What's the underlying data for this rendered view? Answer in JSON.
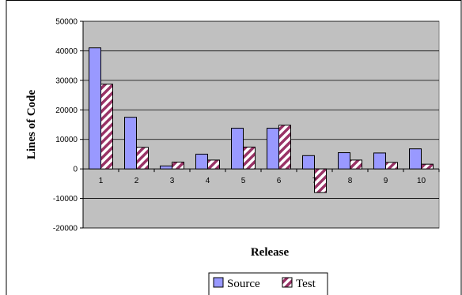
{
  "colors": {
    "plot_bg": "#c0c0c0",
    "source_fill": "#9999ff",
    "test_stripe": "#993366",
    "test_bg": "#ffffff",
    "grid": "#000000",
    "border": "#000000"
  },
  "chart_data": {
    "type": "bar",
    "title": "",
    "xlabel": "Release",
    "ylabel": "Lines of Code",
    "ylim": [
      -20000,
      50000
    ],
    "yticks": [
      -20000,
      -10000,
      0,
      10000,
      20000,
      30000,
      40000,
      50000
    ],
    "grid": true,
    "legend_position": "bottom",
    "categories": [
      "1",
      "2",
      "3",
      "4",
      "5",
      "6",
      "7",
      "8",
      "9",
      "10"
    ],
    "series": [
      {
        "name": "Source",
        "values": [
          41000,
          17500,
          1000,
          5000,
          13800,
          13800,
          4500,
          5500,
          5400,
          6800
        ]
      },
      {
        "name": "Test",
        "values": [
          28700,
          7300,
          2300,
          3000,
          7400,
          14800,
          -8000,
          3000,
          2200,
          1600
        ]
      }
    ]
  }
}
